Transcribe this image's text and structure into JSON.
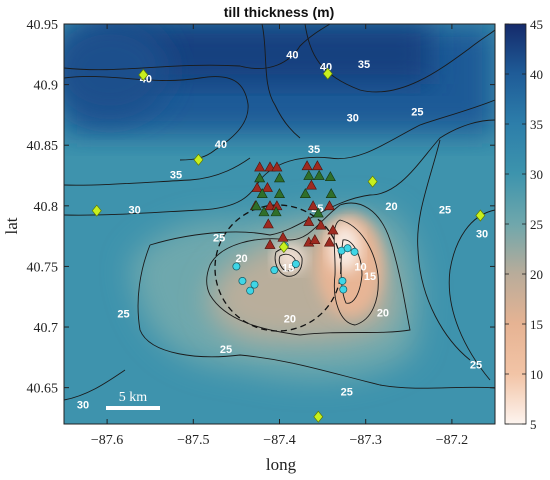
{
  "chart_data": {
    "type": "heatmap",
    "title": "till thickness (m)",
    "xlabel": "long",
    "ylabel": "lat",
    "xlim": [
      -87.65,
      -87.15
    ],
    "ylim": [
      40.62,
      40.95
    ],
    "xticks": [
      "−87.6",
      "−87.5",
      "−87.4",
      "−87.3",
      "−87.2"
    ],
    "yticks": [
      "40.65",
      "40.7",
      "40.75",
      "40.8",
      "40.85",
      "40.9",
      "40.95"
    ],
    "colorbar": {
      "range": [
        5,
        45
      ],
      "ticks": [
        "5",
        "10",
        "15",
        "20",
        "25",
        "30",
        "35",
        "40",
        "45"
      ],
      "colors": [
        "#fdf4ef",
        "#f2c4a6",
        "#e6b393",
        "#b9ac9a",
        "#6fa7ac",
        "#3d94ad",
        "#2d7eaa",
        "#1f5c98",
        "#152a6b"
      ]
    },
    "contour_labels": [
      {
        "text": "40",
        "lon": -87.385,
        "lat": 40.925
      },
      {
        "text": "40",
        "lon": -87.346,
        "lat": 40.915
      },
      {
        "text": "35",
        "lon": -87.302,
        "lat": 40.917
      },
      {
        "text": "40",
        "lon": -87.555,
        "lat": 40.905
      },
      {
        "text": "40",
        "lon": -87.468,
        "lat": 40.851
      },
      {
        "text": "35",
        "lon": -87.36,
        "lat": 40.847
      },
      {
        "text": "30",
        "lon": -87.315,
        "lat": 40.873
      },
      {
        "text": "25",
        "lon": -87.24,
        "lat": 40.878
      },
      {
        "text": "35",
        "lon": -87.52,
        "lat": 40.826
      },
      {
        "text": "30",
        "lon": -87.568,
        "lat": 40.797
      },
      {
        "text": "25",
        "lon": -87.47,
        "lat": 40.774
      },
      {
        "text": "20",
        "lon": -87.444,
        "lat": 40.757
      },
      {
        "text": "20",
        "lon": -87.27,
        "lat": 40.8
      },
      {
        "text": "25",
        "lon": -87.208,
        "lat": 40.797
      },
      {
        "text": "30",
        "lon": -87.165,
        "lat": 40.777
      },
      {
        "text": "10",
        "lon": -87.306,
        "lat": 40.75
      },
      {
        "text": "15",
        "lon": -87.295,
        "lat": 40.742
      },
      {
        "text": "25",
        "lon": -87.356,
        "lat": 40.798
      },
      {
        "text": "15",
        "lon": -87.39,
        "lat": 40.749
      },
      {
        "text": "25",
        "lon": -87.581,
        "lat": 40.711
      },
      {
        "text": "20",
        "lon": -87.388,
        "lat": 40.707
      },
      {
        "text": "20",
        "lon": -87.28,
        "lat": 40.712
      },
      {
        "text": "25",
        "lon": -87.462,
        "lat": 40.682
      },
      {
        "text": "25",
        "lon": -87.172,
        "lat": 40.669
      },
      {
        "text": "25",
        "lon": -87.322,
        "lat": 40.647
      },
      {
        "text": "30",
        "lon": -87.628,
        "lat": 40.636
      }
    ],
    "markers": {
      "diamonds": [
        [
          -87.558,
          40.908
        ],
        [
          -87.344,
          40.909
        ],
        [
          -87.494,
          40.838
        ],
        [
          -87.292,
          40.82
        ],
        [
          -87.612,
          40.796
        ],
        [
          -87.167,
          40.792
        ],
        [
          -87.395,
          40.766
        ],
        [
          -87.355,
          40.626
        ]
      ],
      "red_triangles": [
        [
          -87.423,
          40.832
        ],
        [
          -87.411,
          40.832
        ],
        [
          -87.403,
          40.832
        ],
        [
          -87.368,
          40.833
        ],
        [
          -87.356,
          40.833
        ],
        [
          -87.426,
          40.815
        ],
        [
          -87.414,
          40.815
        ],
        [
          -87.363,
          40.817
        ],
        [
          -87.428,
          40.8
        ],
        [
          -87.411,
          40.8
        ],
        [
          -87.403,
          40.8
        ],
        [
          -87.361,
          40.8
        ],
        [
          -87.342,
          40.8
        ],
        [
          -87.413,
          40.785
        ],
        [
          -87.366,
          40.787
        ],
        [
          -87.352,
          40.784
        ],
        [
          -87.338,
          40.78
        ],
        [
          -87.411,
          40.768
        ],
        [
          -87.396,
          40.774
        ],
        [
          -87.366,
          40.77
        ],
        [
          -87.359,
          40.772
        ],
        [
          -87.342,
          40.77
        ]
      ],
      "green_triangles": [
        [
          -87.423,
          40.823
        ],
        [
          -87.4,
          40.823
        ],
        [
          -87.366,
          40.825
        ],
        [
          -87.354,
          40.825
        ],
        [
          -87.341,
          40.824
        ],
        [
          -87.42,
          40.81
        ],
        [
          -87.4,
          40.81
        ],
        [
          -87.37,
          40.81
        ],
        [
          -87.34,
          40.81
        ],
        [
          -87.427,
          40.8
        ],
        [
          -87.418,
          40.795
        ],
        [
          -87.404,
          40.795
        ],
        [
          -87.355,
          40.794
        ]
      ],
      "cyan_circles": [
        [
          -87.45,
          40.75
        ],
        [
          -87.443,
          40.738
        ],
        [
          -87.434,
          40.73
        ],
        [
          -87.429,
          40.735
        ],
        [
          -87.406,
          40.747
        ],
        [
          -87.394,
          40.767
        ],
        [
          -87.381,
          40.752
        ],
        [
          -87.328,
          40.763
        ],
        [
          -87.321,
          40.765
        ],
        [
          -87.313,
          40.762
        ],
        [
          -87.327,
          40.738
        ],
        [
          -87.326,
          40.731
        ]
      ]
    },
    "dashed_circle": {
      "center": [
        -87.388,
        40.763
      ],
      "radius_km": 10
    },
    "scale_bar_label": "5 km"
  }
}
